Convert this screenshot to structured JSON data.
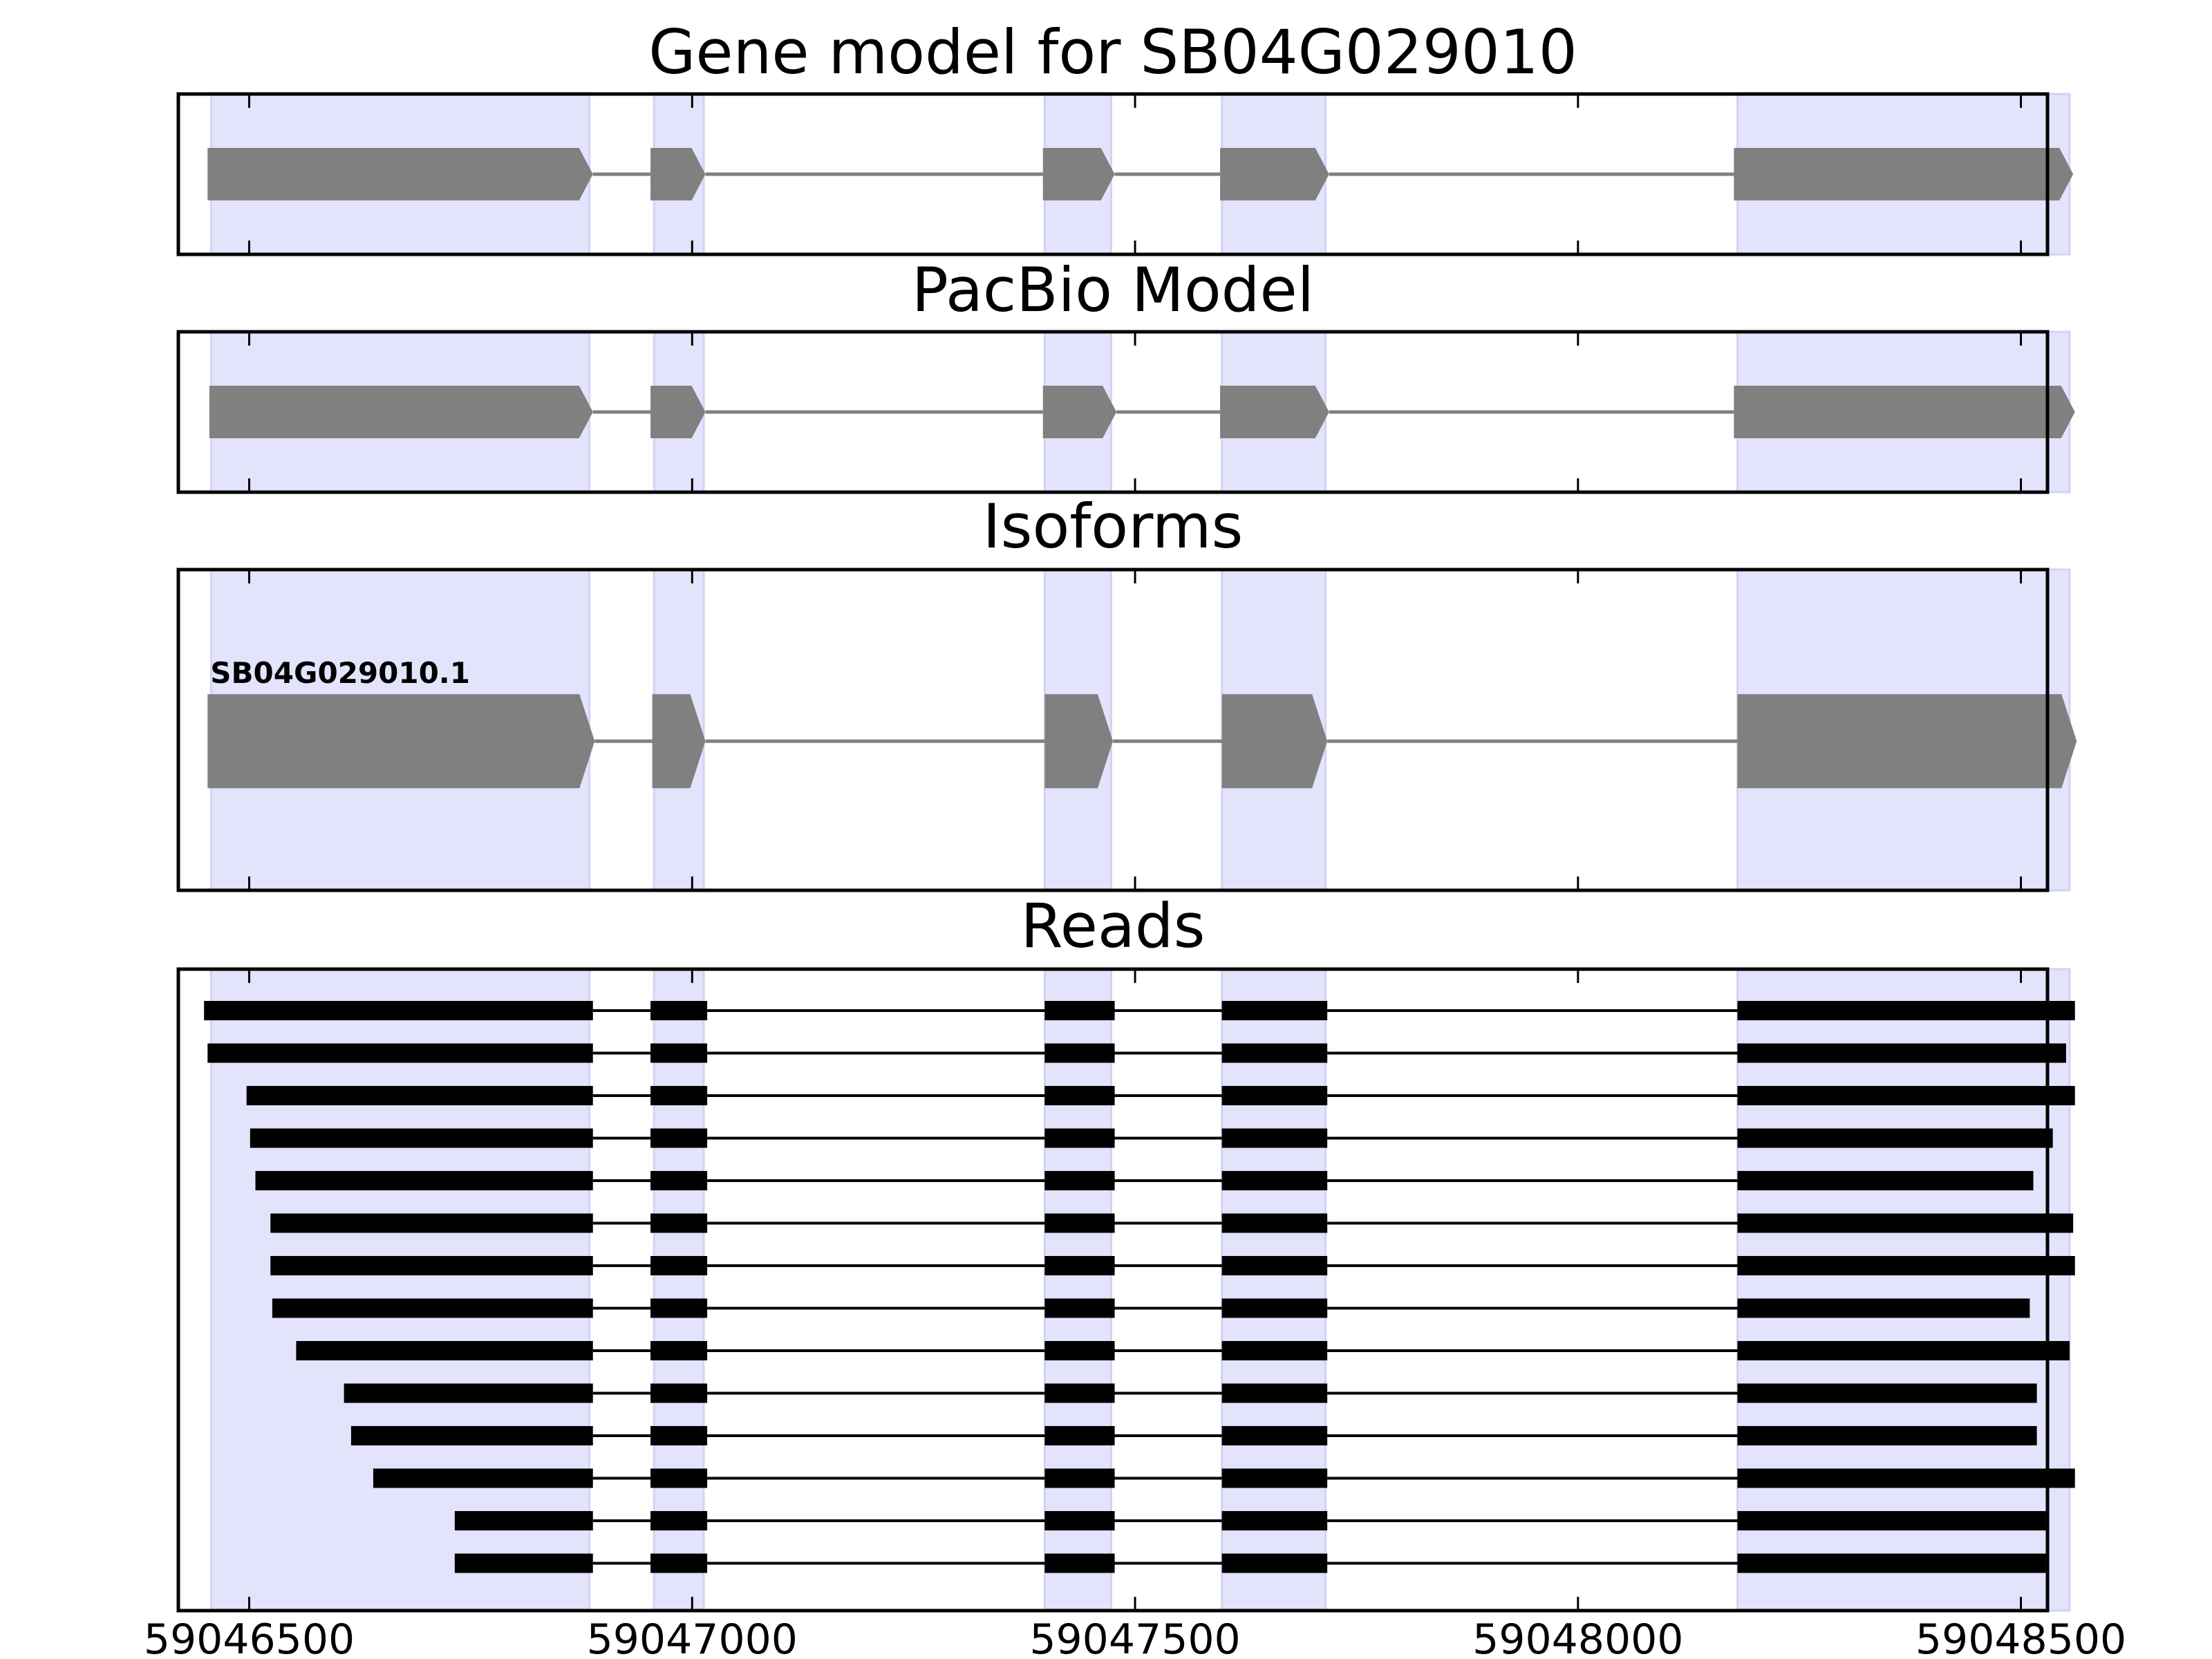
{
  "chart_data": {
    "type": "gene-structure",
    "x_range": [
      59046420,
      59048530
    ],
    "x_ticks": [
      {
        "value": 59046500,
        "label": "59046500"
      },
      {
        "value": 59047000,
        "label": "59047000"
      },
      {
        "value": 59047500,
        "label": "59047500"
      },
      {
        "value": 59048000,
        "label": "59048000"
      },
      {
        "value": 59048500,
        "label": "59048500"
      }
    ],
    "highlight_color": "#e3e3fc",
    "model_color": "#808080",
    "read_color": "#000000",
    "exon_regions": [
      [
        59046457,
        59046884
      ],
      [
        59046957,
        59047013
      ],
      [
        59047398,
        59047473
      ],
      [
        59047598,
        59047715
      ],
      [
        59048180,
        59048555
      ]
    ],
    "panels": [
      {
        "id": "gene-model",
        "title": "Gene model for SB04G029010",
        "kind": "model",
        "label": "",
        "exons": [
          [
            59046453,
            59046888
          ],
          [
            59046953,
            59047015
          ],
          [
            59047396,
            59047477
          ],
          [
            59047596,
            59047719
          ],
          [
            59048176,
            59048559
          ]
        ]
      },
      {
        "id": "pacbio-model",
        "title": "PacBio Model",
        "kind": "model",
        "label": "",
        "exons": [
          [
            59046455,
            59046888
          ],
          [
            59046953,
            59047015
          ],
          [
            59047396,
            59047479
          ],
          [
            59047596,
            59047719
          ],
          [
            59048176,
            59048561
          ]
        ]
      },
      {
        "id": "isoforms",
        "title": "Isoforms",
        "kind": "model",
        "label": "SB04G029010.1",
        "exons": [
          [
            59046453,
            59046890
          ],
          [
            59046955,
            59047015
          ],
          [
            59047398,
            59047475
          ],
          [
            59047598,
            59047717
          ],
          [
            59048180,
            59048563
          ]
        ]
      },
      {
        "id": "reads",
        "title": "Reads",
        "kind": "reads",
        "label": "",
        "reads": [
          [
            [
              59046449,
              59046888
            ],
            [
              59046953,
              59047017
            ],
            [
              59047398,
              59047477
            ],
            [
              59047598,
              59047717
            ],
            [
              59048180,
              59048561
            ]
          ],
          [
            [
              59046453,
              59046888
            ],
            [
              59046953,
              59047017
            ],
            [
              59047398,
              59047477
            ],
            [
              59047598,
              59047717
            ],
            [
              59048180,
              59048551
            ]
          ],
          [
            [
              59046497,
              59046888
            ],
            [
              59046953,
              59047017
            ],
            [
              59047398,
              59047477
            ],
            [
              59047598,
              59047717
            ],
            [
              59048180,
              59048561
            ]
          ],
          [
            [
              59046501,
              59046888
            ],
            [
              59046953,
              59047017
            ],
            [
              59047398,
              59047477
            ],
            [
              59047598,
              59047717
            ],
            [
              59048180,
              59048536
            ]
          ],
          [
            [
              59046507,
              59046888
            ],
            [
              59046953,
              59047017
            ],
            [
              59047398,
              59047477
            ],
            [
              59047598,
              59047717
            ],
            [
              59048180,
              59048514
            ]
          ],
          [
            [
              59046524,
              59046888
            ],
            [
              59046953,
              59047017
            ],
            [
              59047398,
              59047477
            ],
            [
              59047598,
              59047717
            ],
            [
              59048180,
              59048559
            ]
          ],
          [
            [
              59046524,
              59046888
            ],
            [
              59046953,
              59047017
            ],
            [
              59047398,
              59047477
            ],
            [
              59047598,
              59047717
            ],
            [
              59048180,
              59048561
            ]
          ],
          [
            [
              59046526,
              59046888
            ],
            [
              59046953,
              59047017
            ],
            [
              59047398,
              59047477
            ],
            [
              59047598,
              59047717
            ],
            [
              59048180,
              59048510
            ]
          ],
          [
            [
              59046553,
              59046888
            ],
            [
              59046953,
              59047017
            ],
            [
              59047398,
              59047477
            ],
            [
              59047598,
              59047717
            ],
            [
              59048180,
              59048555
            ]
          ],
          [
            [
              59046607,
              59046888
            ],
            [
              59046953,
              59047017
            ],
            [
              59047398,
              59047477
            ],
            [
              59047598,
              59047717
            ],
            [
              59048180,
              59048518
            ]
          ],
          [
            [
              59046615,
              59046888
            ],
            [
              59046953,
              59047017
            ],
            [
              59047398,
              59047477
            ],
            [
              59047598,
              59047717
            ],
            [
              59048180,
              59048518
            ]
          ],
          [
            [
              59046640,
              59046888
            ],
            [
              59046953,
              59047017
            ],
            [
              59047398,
              59047477
            ],
            [
              59047598,
              59047717
            ],
            [
              59048180,
              59048561
            ]
          ],
          [
            [
              59046732,
              59046888
            ],
            [
              59046953,
              59047017
            ],
            [
              59047398,
              59047477
            ],
            [
              59047598,
              59047717
            ],
            [
              59048180,
              59048528
            ]
          ],
          [
            [
              59046732,
              59046888
            ],
            [
              59046953,
              59047017
            ],
            [
              59047398,
              59047477
            ],
            [
              59047598,
              59047717
            ],
            [
              59048180,
              59048528
            ]
          ]
        ]
      }
    ]
  }
}
